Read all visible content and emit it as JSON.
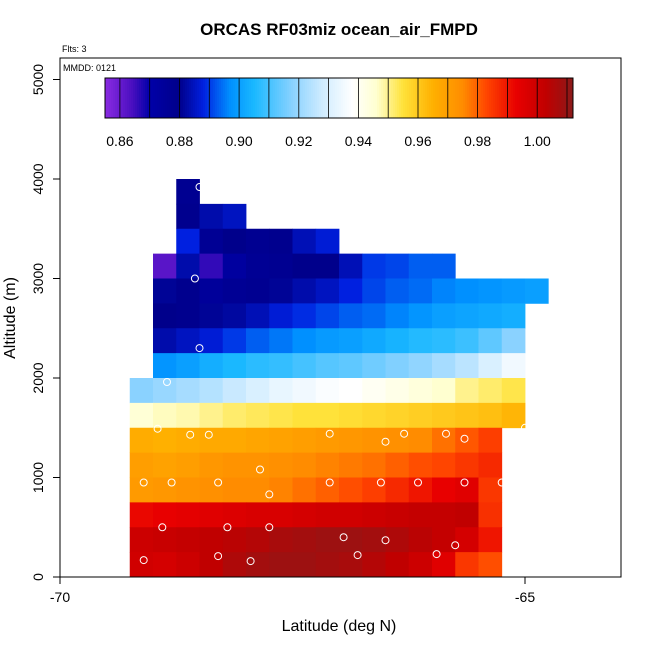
{
  "chart_data": {
    "type": "heatmap",
    "title": "ORCAS RF03miz ocean_air_FMPD",
    "xlabel": "Latitude (deg N)",
    "ylabel": "Altitude (m)",
    "flts_text": "Flts: 3",
    "mmdd_text": "MMDD: 0121",
    "xlim": [
      -70,
      -64.1
    ],
    "ylim": [
      0,
      5200
    ],
    "xticks": [
      -70,
      -65
    ],
    "xtick_labels": [
      "-70",
      "-65"
    ],
    "yticks": [
      0,
      1000,
      2000,
      3000,
      4000,
      5000
    ],
    "ytick_labels": [
      "0",
      "1000",
      "2000",
      "3000",
      "4000",
      "5000"
    ],
    "cell_width_deg": 0.25,
    "cell_height_m": 250,
    "colorbar": {
      "vmin": 0.855,
      "vmax": 1.012,
      "ticks": [
        0.86,
        0.88,
        0.9,
        0.92,
        0.94,
        0.96,
        0.98,
        1.0
      ],
      "tick_labels": [
        "0.86",
        "0.88",
        "0.90",
        "0.92",
        "0.94",
        "0.96",
        "0.98",
        "1.00"
      ],
      "stops": [
        [
          0.855,
          "#8a2be2"
        ],
        [
          0.864,
          "#4b0fc0"
        ],
        [
          0.87,
          "#0000a8"
        ],
        [
          0.88,
          "#00008b"
        ],
        [
          0.888,
          "#0020e0"
        ],
        [
          0.897,
          "#0090ff"
        ],
        [
          0.905,
          "#1ab8ff"
        ],
        [
          0.918,
          "#8ad2ff"
        ],
        [
          0.928,
          "#d0ecff"
        ],
        [
          0.938,
          "#ffffff"
        ],
        [
          0.946,
          "#ffffd0"
        ],
        [
          0.955,
          "#ffe23a"
        ],
        [
          0.965,
          "#ffb000"
        ],
        [
          0.975,
          "#ff8c00"
        ],
        [
          0.983,
          "#ff4500"
        ],
        [
          0.993,
          "#e80000"
        ],
        [
          1.003,
          "#c00000"
        ],
        [
          1.012,
          "#8b1a1a"
        ]
      ]
    },
    "cells": [
      {
        "y0": 3750,
        "x0": -68.75,
        "values": [
          0.878
        ]
      },
      {
        "y0": 3500,
        "x0": -68.75,
        "values": [
          0.879,
          0.883,
          0.885
        ]
      },
      {
        "y0": 3250,
        "x0": -68.75,
        "values": [
          0.888,
          0.877,
          0.88,
          0.878,
          0.879,
          0.884,
          0.887
        ]
      },
      {
        "y0": 3000,
        "x0": -69.0,
        "values": [
          0.862,
          0.883,
          0.866,
          0.873,
          0.877,
          0.878,
          0.88,
          0.88,
          0.884,
          0.89,
          0.891,
          0.893,
          0.893
        ]
      },
      {
        "y0": 2750,
        "x0": -69.0,
        "values": [
          0.881,
          0.879,
          0.875,
          0.877,
          0.878,
          0.881,
          0.883,
          0.885,
          0.888,
          0.891,
          0.893,
          0.894,
          0.896,
          0.897,
          0.898,
          0.899,
          0.9
        ]
      },
      {
        "y0": 2500,
        "x0": -69.0,
        "values": [
          0.88,
          0.879,
          0.881,
          0.882,
          0.884,
          0.887,
          0.889,
          0.891,
          0.893,
          0.894,
          0.896,
          0.898,
          0.9,
          0.901,
          0.902,
          0.903
        ]
      },
      {
        "y0": 2250,
        "x0": -69.0,
        "values": [
          0.883,
          0.885,
          0.887,
          0.89,
          0.893,
          0.895,
          0.897,
          0.899,
          0.9,
          0.902,
          0.904,
          0.906,
          0.907,
          0.909,
          0.913,
          0.918
        ]
      },
      {
        "y0": 2000,
        "x0": -69.0,
        "values": [
          0.898,
          0.9,
          0.903,
          0.905,
          0.907,
          0.908,
          0.91,
          0.912,
          0.913,
          0.915,
          0.917,
          0.919,
          0.922,
          0.925,
          0.93,
          0.935
        ]
      },
      {
        "y0": 1750,
        "x0": -69.25,
        "values": [
          0.918,
          0.92,
          0.922,
          0.924,
          0.927,
          0.93,
          0.933,
          0.935,
          0.937,
          0.938,
          0.94,
          0.942,
          0.944,
          0.946,
          0.95,
          0.952,
          0.954
        ]
      },
      {
        "y0": 1500,
        "x0": -69.25,
        "values": [
          0.945,
          0.947,
          0.948,
          0.95,
          0.952,
          0.953,
          0.954,
          0.955,
          0.955,
          0.956,
          0.957,
          0.958,
          0.959,
          0.96,
          0.961,
          0.962,
          0.964
        ]
      },
      {
        "y0": 1250,
        "x0": -69.25,
        "values": [
          0.966,
          0.965,
          0.966,
          0.967,
          0.967,
          0.968,
          0.969,
          0.97,
          0.971,
          0.972,
          0.973,
          0.974,
          0.975,
          0.978,
          0.981,
          0.984
        ]
      },
      {
        "y0": 1000,
        "x0": -69.25,
        "values": [
          0.97,
          0.969,
          0.97,
          0.972,
          0.973,
          0.973,
          0.974,
          0.975,
          0.976,
          0.977,
          0.978,
          0.98,
          0.982,
          0.983,
          0.985,
          0.987
        ]
      },
      {
        "y0": 750,
        "x0": -69.25,
        "values": [
          0.971,
          0.972,
          0.973,
          0.974,
          0.975,
          0.975,
          0.976,
          0.978,
          0.98,
          0.982,
          0.984,
          0.987,
          0.99,
          0.993,
          0.995,
          0.985
        ]
      },
      {
        "y0": 500,
        "x0": -69.25,
        "values": [
          0.992,
          0.993,
          0.994,
          0.995,
          0.996,
          0.997,
          0.997,
          0.998,
          0.999,
          0.999,
          1.0,
          1.001,
          1.002,
          1.002,
          1.003,
          0.986
        ]
      },
      {
        "y0": 250,
        "x0": -69.25,
        "values": [
          1.0,
          1.001,
          1.002,
          1.003,
          1.004,
          1.005,
          1.007,
          1.008,
          1.009,
          1.009,
          1.008,
          1.006,
          1.004,
          1.002,
          0.998,
          0.99
        ]
      },
      {
        "y0": 0,
        "x0": -69.25,
        "values": [
          0.999,
          0.998,
          1.0,
          1.003,
          1.006,
          1.008,
          1.009,
          1.009,
          1.008,
          1.007,
          1.005,
          1.003,
          1.0,
          0.995,
          0.985,
          0.982
        ]
      }
    ],
    "points": [
      [
        -68.5,
        3920
      ],
      [
        -68.55,
        3000
      ],
      [
        -68.5,
        2300
      ],
      [
        -68.85,
        1960
      ],
      [
        -64.6,
        2950
      ],
      [
        -65.0,
        1500
      ],
      [
        -64.95,
        2150
      ],
      [
        -68.95,
        1490
      ],
      [
        -68.6,
        1430
      ],
      [
        -68.4,
        1430
      ],
      [
        -67.1,
        1440
      ],
      [
        -66.5,
        1360
      ],
      [
        -66.3,
        1440
      ],
      [
        -65.85,
        1440
      ],
      [
        -65.65,
        1390
      ],
      [
        -69.1,
        950
      ],
      [
        -68.8,
        950
      ],
      [
        -68.3,
        950
      ],
      [
        -67.85,
        1080
      ],
      [
        -67.75,
        830
      ],
      [
        -67.1,
        950
      ],
      [
        -66.55,
        950
      ],
      [
        -66.15,
        950
      ],
      [
        -65.65,
        950
      ],
      [
        -65.25,
        950
      ],
      [
        -64.85,
        950
      ],
      [
        -69.3,
        450
      ],
      [
        -68.9,
        500
      ],
      [
        -68.2,
        500
      ],
      [
        -67.75,
        500
      ],
      [
        -66.95,
        400
      ],
      [
        -66.8,
        220
      ],
      [
        -66.5,
        370
      ],
      [
        -65.95,
        230
      ],
      [
        -65.75,
        320
      ],
      [
        -65.2,
        450
      ],
      [
        -64.95,
        230
      ],
      [
        -64.8,
        380
      ],
      [
        -69.1,
        170
      ],
      [
        -68.3,
        210
      ],
      [
        -67.95,
        160
      ]
    ]
  }
}
